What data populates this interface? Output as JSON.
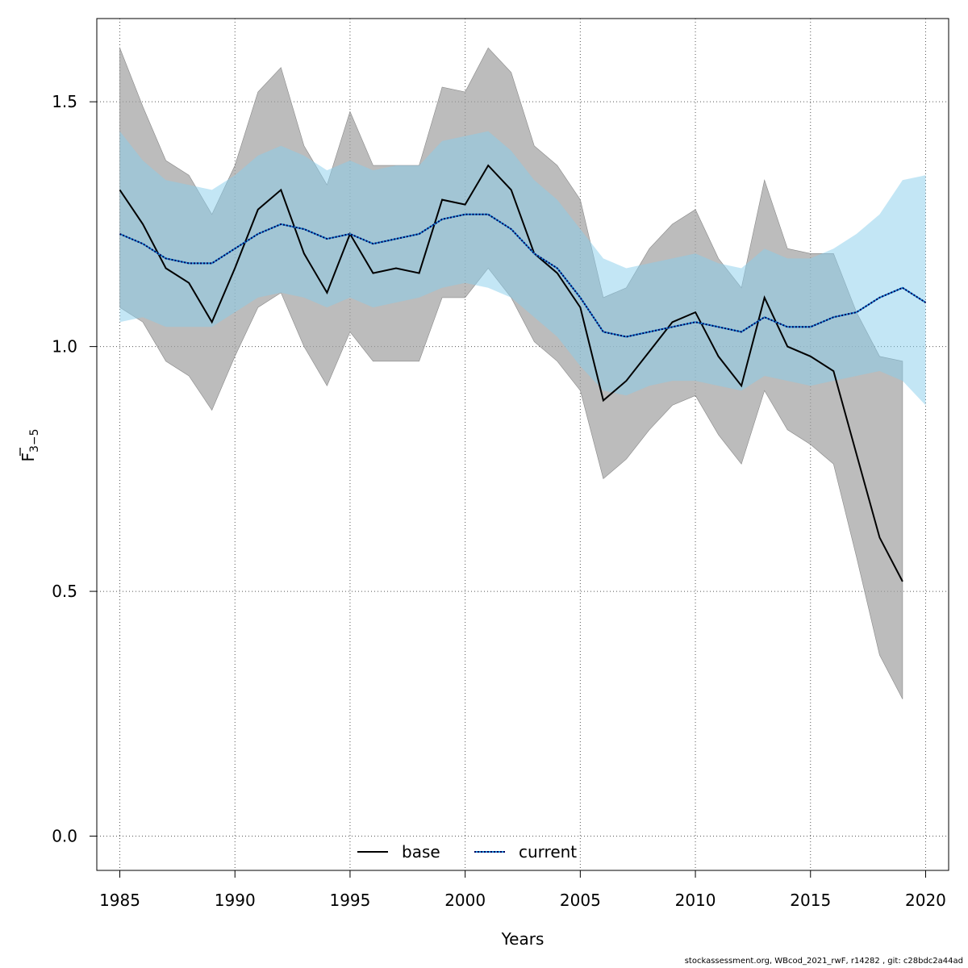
{
  "chart_data": {
    "type": "line",
    "xlabel": "Years",
    "ylabel_main": "F",
    "ylabel_sub": "3−5",
    "xlim": [
      1984,
      2021
    ],
    "ylim": [
      -0.07,
      1.67
    ],
    "xticks": [
      1985,
      1990,
      1995,
      2000,
      2005,
      2010,
      2015,
      2020
    ],
    "yticks": [
      0.0,
      0.5,
      1.0,
      1.5
    ],
    "ytick_labels": [
      "0.0",
      "0.5",
      "1.0",
      "1.5"
    ],
    "grid": true,
    "legend_position": "bottom-center",
    "series": [
      {
        "name": "base",
        "style": "solid",
        "line_color": "#000000",
        "band_color": "#a0a0a0",
        "x": [
          1985,
          1986,
          1987,
          1988,
          1989,
          1990,
          1991,
          1992,
          1993,
          1994,
          1995,
          1996,
          1997,
          1998,
          1999,
          2000,
          2001,
          2002,
          2003,
          2004,
          2005,
          2006,
          2007,
          2008,
          2009,
          2010,
          2011,
          2012,
          2013,
          2014,
          2015,
          2016,
          2017,
          2018,
          2019
        ],
        "values": [
          1.32,
          1.25,
          1.16,
          1.13,
          1.05,
          1.16,
          1.28,
          1.32,
          1.19,
          1.11,
          1.23,
          1.15,
          1.16,
          1.15,
          1.3,
          1.29,
          1.37,
          1.32,
          1.19,
          1.15,
          1.08,
          0.89,
          0.93,
          0.99,
          1.05,
          1.07,
          0.98,
          0.92,
          1.1,
          1.0,
          0.98,
          0.95,
          0.78,
          0.61,
          0.52
        ],
        "lower": [
          1.08,
          1.05,
          0.97,
          0.94,
          0.87,
          0.98,
          1.08,
          1.11,
          1.0,
          0.92,
          1.03,
          0.97,
          0.97,
          0.97,
          1.1,
          1.1,
          1.16,
          1.1,
          1.01,
          0.97,
          0.91,
          0.73,
          0.77,
          0.83,
          0.88,
          0.9,
          0.82,
          0.76,
          0.91,
          0.83,
          0.8,
          0.76,
          0.57,
          0.37,
          0.28
        ],
        "upper": [
          1.61,
          1.49,
          1.38,
          1.35,
          1.27,
          1.37,
          1.52,
          1.57,
          1.41,
          1.33,
          1.48,
          1.37,
          1.37,
          1.37,
          1.53,
          1.52,
          1.61,
          1.56,
          1.41,
          1.37,
          1.3,
          1.1,
          1.12,
          1.2,
          1.25,
          1.28,
          1.18,
          1.12,
          1.34,
          1.2,
          1.19,
          1.19,
          1.07,
          0.98,
          0.97
        ]
      },
      {
        "name": "current",
        "style": "dotted",
        "line_color": "#00005a",
        "line_color_alt": "#1a8ad4",
        "band_color": "#87ceeb",
        "x": [
          1985,
          1986,
          1987,
          1988,
          1989,
          1990,
          1991,
          1992,
          1993,
          1994,
          1995,
          1996,
          1997,
          1998,
          1999,
          2000,
          2001,
          2002,
          2003,
          2004,
          2005,
          2006,
          2007,
          2008,
          2009,
          2010,
          2011,
          2012,
          2013,
          2014,
          2015,
          2016,
          2017,
          2018,
          2019,
          2020
        ],
        "values": [
          1.23,
          1.21,
          1.18,
          1.17,
          1.17,
          1.2,
          1.23,
          1.25,
          1.24,
          1.22,
          1.23,
          1.21,
          1.22,
          1.23,
          1.26,
          1.27,
          1.27,
          1.24,
          1.19,
          1.16,
          1.1,
          1.03,
          1.02,
          1.03,
          1.04,
          1.05,
          1.04,
          1.03,
          1.06,
          1.04,
          1.04,
          1.06,
          1.07,
          1.1,
          1.12,
          1.09
        ],
        "lower": [
          1.05,
          1.06,
          1.04,
          1.04,
          1.04,
          1.07,
          1.1,
          1.11,
          1.1,
          1.08,
          1.1,
          1.08,
          1.09,
          1.1,
          1.12,
          1.13,
          1.12,
          1.1,
          1.06,
          1.02,
          0.96,
          0.91,
          0.9,
          0.92,
          0.93,
          0.93,
          0.92,
          0.91,
          0.94,
          0.93,
          0.92,
          0.93,
          0.94,
          0.95,
          0.93,
          0.88
        ],
        "upper": [
          1.44,
          1.38,
          1.34,
          1.33,
          1.32,
          1.35,
          1.39,
          1.41,
          1.39,
          1.36,
          1.38,
          1.36,
          1.37,
          1.37,
          1.42,
          1.43,
          1.44,
          1.4,
          1.34,
          1.3,
          1.24,
          1.18,
          1.16,
          1.17,
          1.18,
          1.19,
          1.17,
          1.16,
          1.2,
          1.18,
          1.18,
          1.2,
          1.23,
          1.27,
          1.34,
          1.35
        ]
      }
    ]
  },
  "footer_text": "stockassessment.org, WBcod_2021_rwF, r14282 , git: c28bdc2a44ad"
}
